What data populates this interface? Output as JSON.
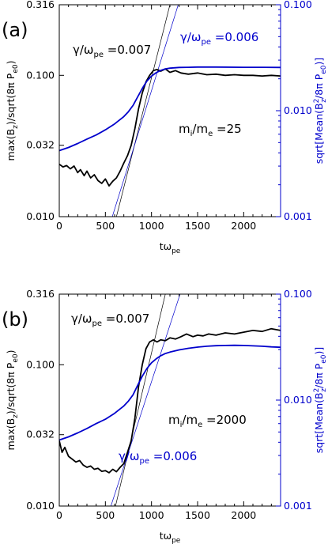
{
  "chart_data": [
    {
      "type": "line",
      "panel_label": "(a)",
      "xlabel": "tω_pe",
      "ylabel_left": "max(B_z)/sqrt(8π P_e0)",
      "ylabel_right": "sqrt[Mean(B_z^2/8π P_e0)]",
      "xlim": [
        0,
        2400
      ],
      "ylim_left": [
        0.01,
        0.316
      ],
      "ylim_right": [
        0.001,
        0.1
      ],
      "log_y": true,
      "x_ticks": [
        "0",
        "500",
        "1000",
        "1500",
        "2000"
      ],
      "y_ticks_left": [
        "0.010",
        "0.032",
        "0.100",
        "0.316"
      ],
      "y_ticks_right": [
        "0.001",
        "0.010",
        "0.100"
      ],
      "colors": {
        "max": "#000000",
        "mean": "#0000cc"
      },
      "annotations": [
        {
          "text": "γ/ω_pe = 0.007",
          "color": "#000000"
        },
        {
          "text": "γ/ω_pe = 0.006",
          "color": "#0000cc"
        },
        {
          "text": "m_i/m_e = 25",
          "color": "#000000"
        }
      ],
      "series": [
        {
          "axis": "left",
          "x": [
            0,
            40,
            80,
            120,
            160,
            200,
            230,
            270,
            300,
            340,
            380,
            420,
            460,
            500,
            540,
            580,
            620,
            660,
            700,
            740,
            780,
            820,
            860,
            900,
            940,
            980,
            1020,
            1060,
            1100,
            1150,
            1200,
            1260,
            1320,
            1400,
            1500,
            1600,
            1700,
            1800,
            1900,
            2000,
            2100,
            2200,
            2300,
            2400
          ],
          "y": [
            0.0235,
            0.0225,
            0.023,
            0.0218,
            0.0228,
            0.0205,
            0.0215,
            0.0195,
            0.021,
            0.0188,
            0.0198,
            0.018,
            0.0172,
            0.0185,
            0.0165,
            0.0178,
            0.0188,
            0.021,
            0.024,
            0.027,
            0.032,
            0.042,
            0.058,
            0.075,
            0.09,
            0.1,
            0.108,
            0.11,
            0.107,
            0.111,
            0.105,
            0.108,
            0.104,
            0.102,
            0.104,
            0.101,
            0.102,
            0.1,
            0.101,
            0.1,
            0.1,
            0.099,
            0.1,
            0.099
          ]
        },
        {
          "axis": "right",
          "x": [
            0,
            100,
            200,
            300,
            400,
            500,
            600,
            700,
            750,
            800,
            850,
            900,
            950,
            1000,
            1050,
            1100,
            1150,
            1200,
            1300,
            1400,
            1500,
            1700,
            2000,
            2200,
            2400
          ],
          "y": [
            0.0042,
            0.0045,
            0.0049,
            0.0054,
            0.0059,
            0.0066,
            0.0075,
            0.0088,
            0.0098,
            0.0112,
            0.0135,
            0.0162,
            0.019,
            0.0212,
            0.0228,
            0.024,
            0.0248,
            0.0252,
            0.0256,
            0.0257,
            0.0258,
            0.0258,
            0.0257,
            0.0257,
            0.0256
          ]
        }
      ]
    },
    {
      "type": "line",
      "panel_label": "(b)",
      "xlabel": "tω_pe",
      "ylabel_left": "max(B_z)/sqrt(8π P_e0)",
      "ylabel_right": "sqrt[Mean(B_z^2/8π P_e0)]",
      "xlim": [
        0,
        2400
      ],
      "ylim_left": [
        0.01,
        0.316
      ],
      "ylim_right": [
        0.001,
        0.1
      ],
      "log_y": true,
      "x_ticks": [
        "0",
        "500",
        "1000",
        "1500",
        "2000"
      ],
      "y_ticks_left": [
        "0.010",
        "0.032",
        "0.100",
        "0.316"
      ],
      "y_ticks_right": [
        "0.001",
        "0.010",
        "0.100"
      ],
      "colors": {
        "max": "#000000",
        "mean": "#0000cc"
      },
      "annotations": [
        {
          "text": "γ/ω_pe = 0.007",
          "color": "#000000"
        },
        {
          "text": "γ/ω_pe = 0.006",
          "color": "#0000cc"
        },
        {
          "text": "m_i/m_e = 2000",
          "color": "#000000"
        }
      ],
      "series": [
        {
          "axis": "left",
          "x": [
            0,
            30,
            60,
            100,
            140,
            180,
            220,
            260,
            300,
            340,
            380,
            420,
            460,
            500,
            540,
            580,
            620,
            660,
            700,
            740,
            780,
            820,
            860,
            900,
            940,
            980,
            1020,
            1060,
            1100,
            1150,
            1200,
            1260,
            1320,
            1380,
            1450,
            1500,
            1560,
            1620,
            1700,
            1800,
            1900,
            2000,
            2100,
            2200,
            2300,
            2400
          ],
          "y": [
            0.029,
            0.024,
            0.026,
            0.0225,
            0.0215,
            0.0205,
            0.021,
            0.0195,
            0.0188,
            0.0192,
            0.0182,
            0.0185,
            0.0176,
            0.0178,
            0.0172,
            0.0182,
            0.0175,
            0.0188,
            0.02,
            0.024,
            0.029,
            0.042,
            0.07,
            0.1,
            0.13,
            0.145,
            0.15,
            0.145,
            0.15,
            0.148,
            0.155,
            0.152,
            0.158,
            0.165,
            0.158,
            0.162,
            0.16,
            0.165,
            0.162,
            0.168,
            0.165,
            0.17,
            0.175,
            0.172,
            0.18,
            0.175
          ]
        },
        {
          "axis": "right",
          "x": [
            0,
            100,
            200,
            300,
            400,
            500,
            600,
            700,
            750,
            800,
            850,
            900,
            950,
            1000,
            1050,
            1100,
            1150,
            1200,
            1300,
            1400,
            1500,
            1600,
            1700,
            1800,
            1900,
            2000,
            2100,
            2200,
            2300,
            2400
          ],
          "y": [
            0.0042,
            0.0045,
            0.0049,
            0.0054,
            0.006,
            0.0066,
            0.0075,
            0.0088,
            0.0098,
            0.0112,
            0.0138,
            0.0168,
            0.0198,
            0.0225,
            0.0245,
            0.0262,
            0.0275,
            0.0284,
            0.0298,
            0.0308,
            0.0316,
            0.0322,
            0.0326,
            0.0328,
            0.0329,
            0.0328,
            0.0325,
            0.0322,
            0.0318,
            0.0315
          ]
        }
      ]
    }
  ]
}
